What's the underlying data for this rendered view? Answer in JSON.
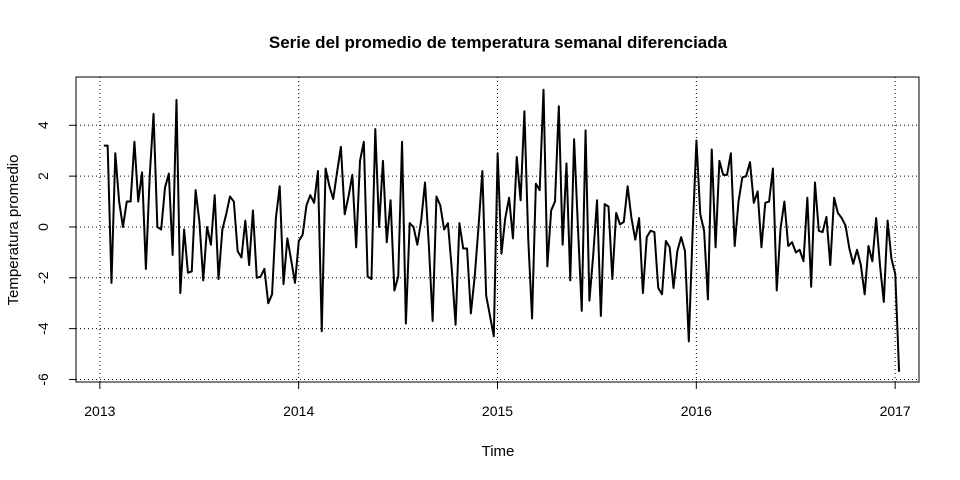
{
  "chart_data": {
    "type": "line",
    "title": "Serie del promedio de temperatura semanal diferenciada",
    "xlabel": "Time",
    "ylabel": "Temperatura promedio",
    "xlim": [
      2012.88,
      2017.12
    ],
    "ylim": [
      -6.1,
      5.9
    ],
    "x_ticks": [
      2013,
      2014,
      2015,
      2016,
      2017
    ],
    "x_tick_labels": [
      "2013",
      "2014",
      "2015",
      "2016",
      "2017"
    ],
    "y_ticks": [
      -6,
      -4,
      -2,
      0,
      2,
      4
    ],
    "y_tick_labels": [
      "-6",
      "-4",
      "-2",
      "0",
      "2",
      "4"
    ],
    "grid": true,
    "grid_style": "dotted",
    "line_color": "#000000",
    "series": [
      {
        "start": 2013.02,
        "step": 0.01923,
        "values": [
          3.2,
          3.2,
          -2.2,
          2.9,
          1.0,
          0.0,
          1.0,
          1.0,
          3.35,
          1.0,
          2.15,
          -1.65,
          2.0,
          4.45,
          0.0,
          -0.1,
          1.55,
          2.1,
          -1.1,
          5.0,
          -2.6,
          -0.1,
          -1.8,
          -1.75,
          1.45,
          0.2,
          -2.1,
          0.0,
          -0.7,
          1.25,
          -2.05,
          -0.1,
          0.5,
          1.2,
          1.0,
          -0.95,
          -1.2,
          0.25,
          -1.5,
          0.65,
          -2.0,
          -1.95,
          -1.65,
          -3.0,
          -2.65,
          0.35,
          1.6,
          -2.25,
          -0.45,
          -1.3,
          -2.2,
          -0.55,
          -0.3,
          0.85,
          1.25,
          0.95,
          2.2,
          -4.1,
          2.3,
          1.6,
          1.1,
          2.15,
          3.15,
          0.5,
          1.2,
          2.05,
          -0.8,
          2.6,
          3.35,
          -1.95,
          -2.05,
          3.85,
          0.0,
          2.6,
          -0.6,
          1.05,
          -2.5,
          -1.95,
          3.35,
          -3.8,
          0.15,
          0.0,
          -0.7,
          0.25,
          1.75,
          -0.7,
          -3.7,
          1.2,
          0.85,
          -0.1,
          0.15,
          -1.65,
          -3.85,
          0.15,
          -0.85,
          -0.85,
          -3.4,
          -1.95,
          0.0,
          2.2,
          -2.7,
          -3.5,
          -4.3,
          2.9,
          -1.05,
          0.35,
          1.15,
          -0.45,
          2.75,
          1.05,
          4.55,
          -0.45,
          -3.6,
          1.7,
          1.45,
          5.4,
          -1.55,
          0.65,
          1.0,
          4.75,
          -0.7,
          2.5,
          -2.1,
          3.45,
          0.0,
          -3.3,
          3.8,
          -2.9,
          -1.1,
          1.05,
          -3.5,
          0.9,
          0.8,
          -2.05,
          0.55,
          0.1,
          0.2,
          1.6,
          0.35,
          -0.5,
          0.35,
          -2.6,
          -0.4,
          -0.15,
          -0.2,
          -2.4,
          -2.65,
          -0.55,
          -0.8,
          -2.4,
          -0.95,
          -0.4,
          -0.95,
          -4.5,
          -0.2,
          3.4,
          0.5,
          -0.15,
          -2.85,
          3.05,
          -0.8,
          2.6,
          2.05,
          2.05,
          2.9,
          -0.75,
          1.0,
          1.95,
          2.0,
          2.55,
          0.95,
          1.4,
          -0.8,
          0.95,
          1.0,
          2.3,
          -2.5,
          -0.05,
          1.0,
          -0.75,
          -0.6,
          -1.0,
          -0.9,
          -1.35,
          1.15,
          -2.35,
          1.75,
          -0.15,
          -0.2,
          0.4,
          -1.5,
          1.15,
          0.55,
          0.35,
          0.05,
          -0.85,
          -1.45,
          -0.9,
          -1.5,
          -2.65,
          -0.75,
          -1.35,
          0.35,
          -1.5,
          -2.95,
          0.25,
          -1.25,
          -1.85,
          -5.7
        ]
      }
    ]
  }
}
